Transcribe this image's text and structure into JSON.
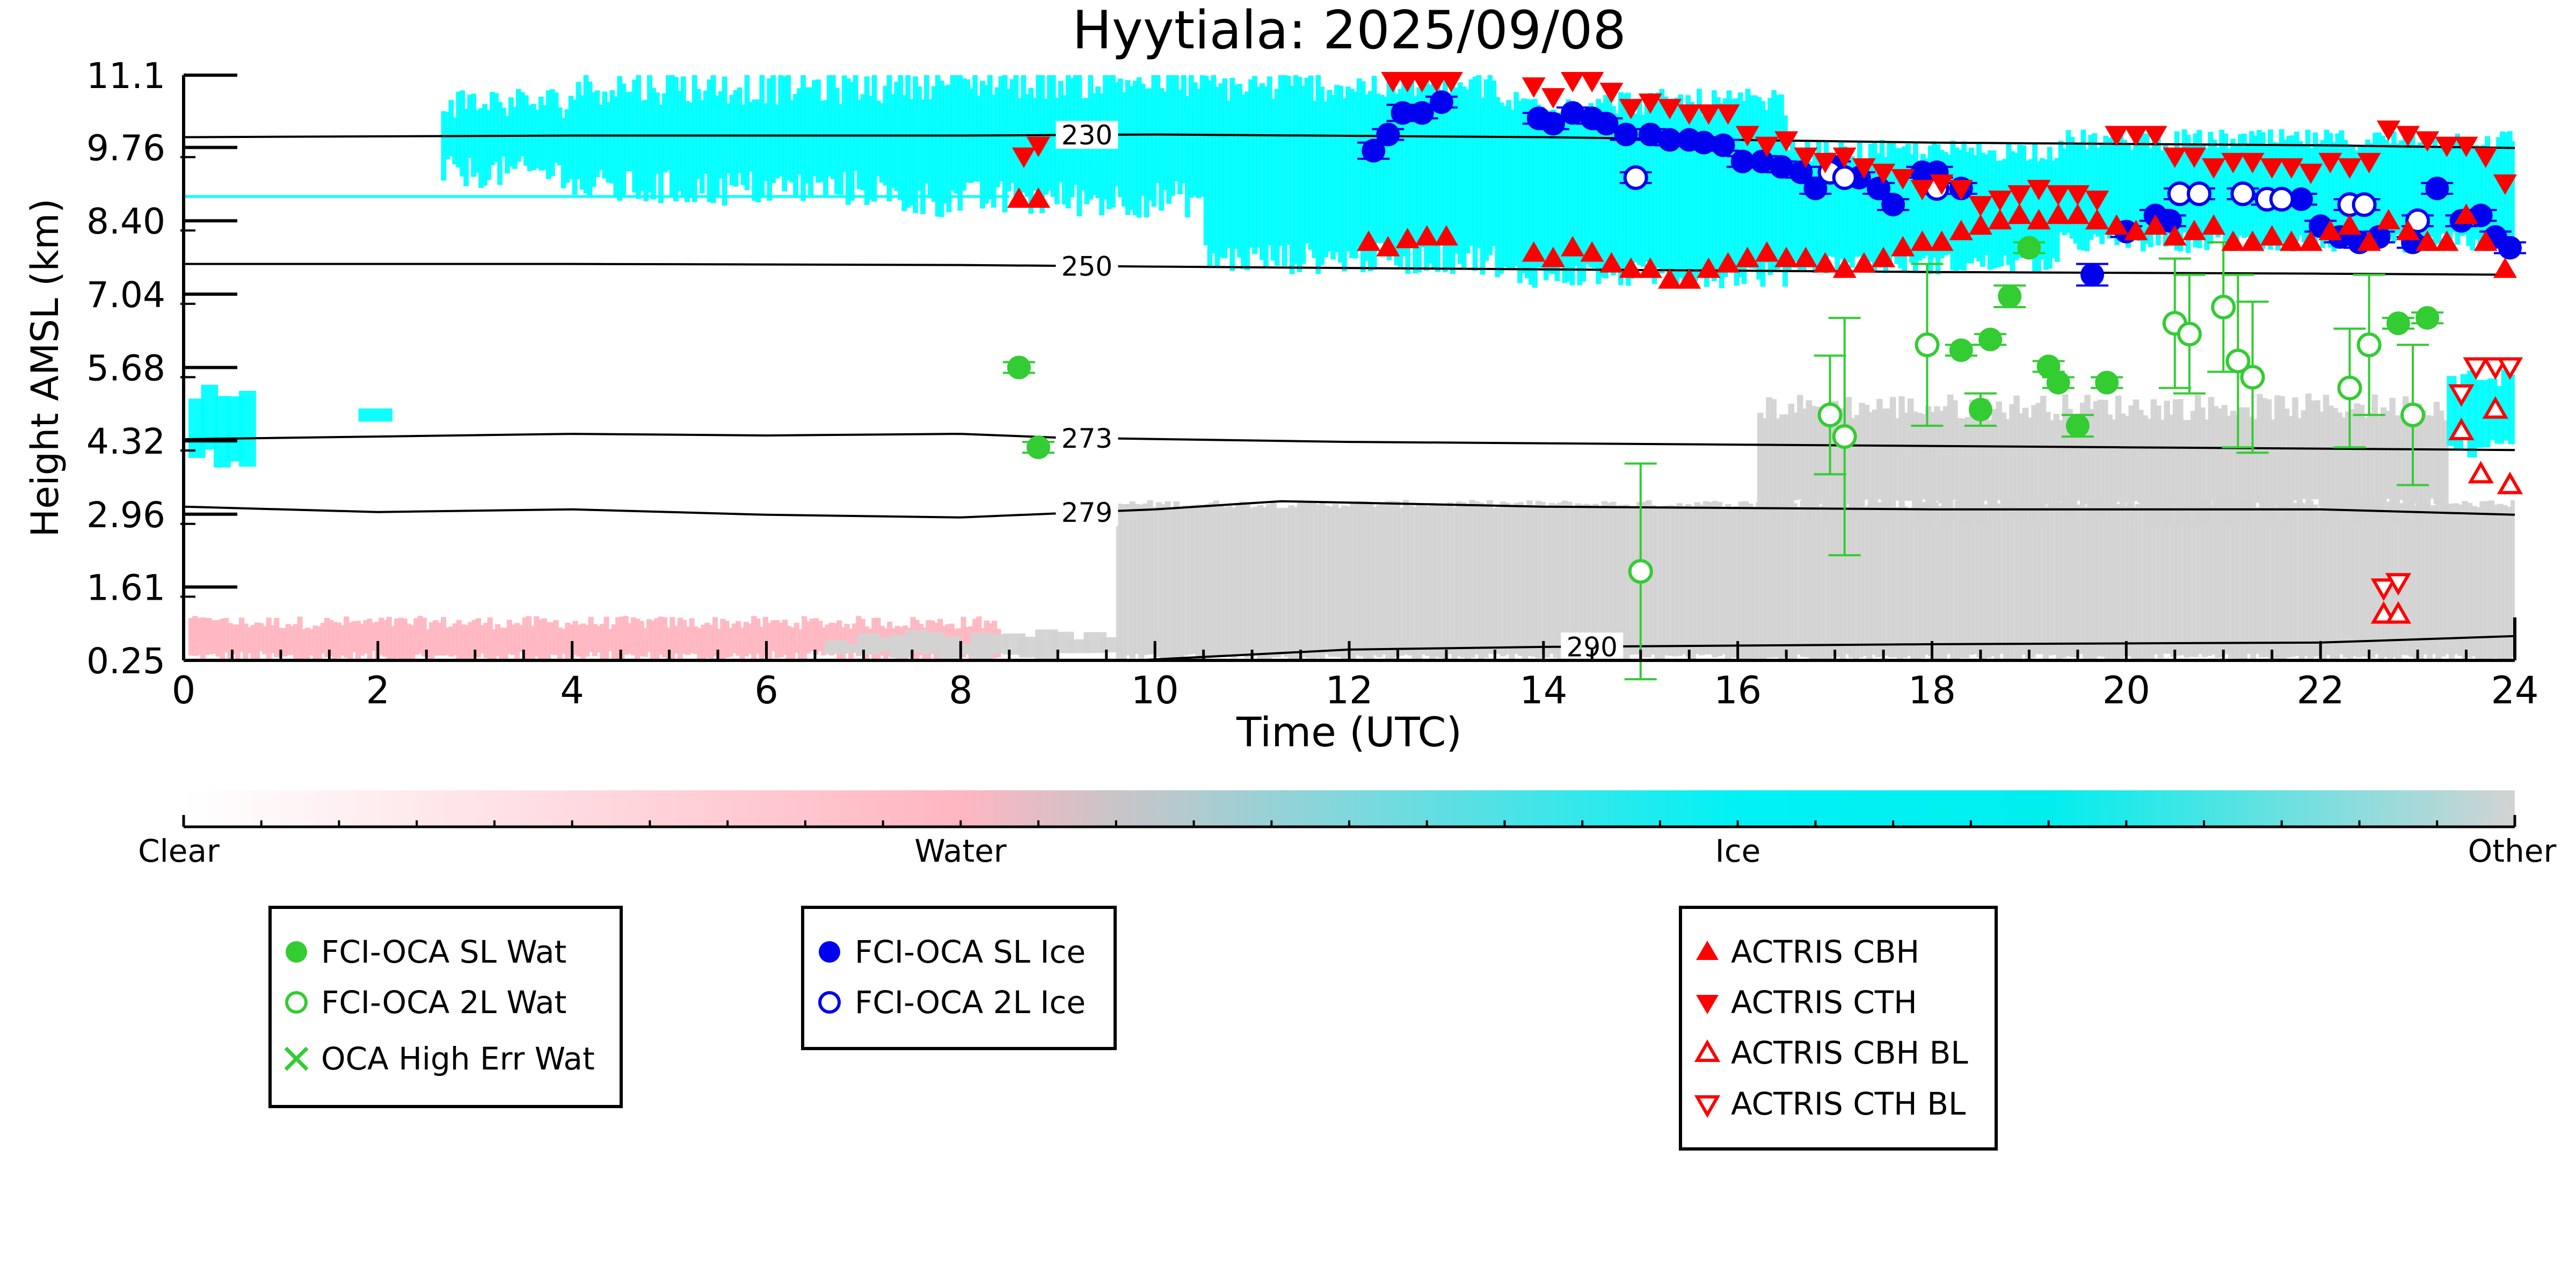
{
  "chart_data": {
    "type": "scatter",
    "title": "Hyytiala: 2025/09/08",
    "xlabel": "Time (UTC)",
    "ylabel": "Height AMSL (km)",
    "xlim": [
      0,
      24
    ],
    "ylim": [
      0.25,
      11.1
    ],
    "xticks": [
      0,
      2,
      4,
      6,
      8,
      10,
      12,
      14,
      16,
      18,
      20,
      22,
      24
    ],
    "yticks": [
      "0.25",
      "1.61",
      "2.96",
      "4.32",
      "5.68",
      "7.04",
      "8.40",
      "9.76",
      "11.1"
    ],
    "ytick_values": [
      0.25,
      1.61,
      2.96,
      4.32,
      5.68,
      7.04,
      8.4,
      9.76,
      11.1
    ],
    "background": "cloud classification image (clear / water / ice / other), shown as colour shading",
    "contours": [
      {
        "label": "230",
        "label_x": 9.3,
        "points": [
          [
            0,
            9.95
          ],
          [
            4,
            9.98
          ],
          [
            8,
            9.98
          ],
          [
            10,
            10.0
          ],
          [
            14,
            9.95
          ],
          [
            18,
            9.85
          ],
          [
            22,
            9.8
          ],
          [
            24,
            9.75
          ]
        ]
      },
      {
        "label": "250",
        "label_x": 9.3,
        "points": [
          [
            0,
            7.6
          ],
          [
            4,
            7.6
          ],
          [
            8,
            7.58
          ],
          [
            10,
            7.55
          ],
          [
            14,
            7.5
          ],
          [
            18,
            7.45
          ],
          [
            22,
            7.42
          ],
          [
            24,
            7.4
          ]
        ]
      },
      {
        "label": "273",
        "label_x": 9.3,
        "points": [
          [
            0,
            4.35
          ],
          [
            2,
            4.4
          ],
          [
            4,
            4.45
          ],
          [
            6,
            4.42
          ],
          [
            8,
            4.45
          ],
          [
            9,
            4.38
          ],
          [
            12,
            4.3
          ],
          [
            16,
            4.25
          ],
          [
            20,
            4.2
          ],
          [
            24,
            4.15
          ]
        ]
      },
      {
        "label": "279",
        "label_x": 9.3,
        "points": [
          [
            0,
            3.1
          ],
          [
            2,
            3.0
          ],
          [
            4,
            3.05
          ],
          [
            6,
            2.95
          ],
          [
            8,
            2.9
          ],
          [
            10,
            3.05
          ],
          [
            11.3,
            3.2
          ],
          [
            14,
            3.1
          ],
          [
            18,
            3.05
          ],
          [
            22,
            3.05
          ],
          [
            24,
            2.95
          ]
        ]
      },
      {
        "label": "290",
        "label_x": 14.5,
        "points": [
          [
            9.8,
            0.25
          ],
          [
            12,
            0.45
          ],
          [
            14,
            0.5
          ],
          [
            18,
            0.55
          ],
          [
            22,
            0.58
          ],
          [
            24,
            0.7
          ]
        ]
      }
    ],
    "series": [
      {
        "name": "FCI-OCA SL Wat",
        "marker": "filled-circle",
        "color": "#33cc33",
        "points": [
          [
            8.6,
            5.68,
            0.1
          ],
          [
            8.8,
            4.2,
            0.1
          ],
          [
            18.3,
            6.0,
            0.1
          ],
          [
            18.5,
            4.9,
            0.3
          ],
          [
            18.6,
            6.2,
            0.1
          ],
          [
            18.8,
            7.0,
            0.2
          ],
          [
            19.0,
            7.9,
            0.1
          ],
          [
            19.2,
            5.7,
            0.1
          ],
          [
            19.3,
            5.4,
            0.1
          ],
          [
            19.5,
            4.6,
            0.2
          ],
          [
            19.8,
            5.4,
            0.1
          ],
          [
            22.8,
            6.5,
            0.1
          ],
          [
            23.1,
            6.6,
            0.1
          ]
        ]
      },
      {
        "name": "FCI-OCA 2L Wat",
        "marker": "open-circle",
        "color": "#33cc33",
        "points": [
          [
            15.0,
            1.9,
            2.0
          ],
          [
            16.95,
            4.8,
            1.1
          ],
          [
            17.1,
            4.4,
            2.2
          ],
          [
            17.95,
            6.1,
            1.5
          ],
          [
            20.5,
            6.5,
            1.2
          ],
          [
            20.65,
            6.3,
            1.1
          ],
          [
            21.0,
            6.8,
            1.2
          ],
          [
            21.15,
            5.8,
            1.6
          ],
          [
            21.3,
            5.5,
            1.4
          ],
          [
            22.3,
            5.3,
            1.1
          ],
          [
            22.5,
            6.1,
            1.3
          ],
          [
            22.95,
            4.8,
            1.3
          ]
        ]
      },
      {
        "name": "OCA High Err Wat",
        "marker": "x",
        "color": "#33cc33",
        "points": []
      },
      {
        "name": "FCI-OCA SL Ice",
        "marker": "filled-circle",
        "color": "#0000ee",
        "points": [
          [
            12.25,
            9.7,
            0.15
          ],
          [
            12.4,
            10.0,
            0.1
          ],
          [
            12.55,
            10.4,
            0.15
          ],
          [
            12.75,
            10.4,
            0.1
          ],
          [
            12.95,
            10.6,
            0.1
          ],
          [
            13.95,
            10.3,
            0.1
          ],
          [
            14.1,
            10.2,
            0.1
          ],
          [
            14.3,
            10.4,
            0.1
          ],
          [
            14.5,
            10.3,
            0.1
          ],
          [
            14.65,
            10.2,
            0.1
          ],
          [
            14.85,
            10.0,
            0.1
          ],
          [
            15.1,
            10.0,
            0.1
          ],
          [
            15.3,
            9.9,
            0.1
          ],
          [
            15.5,
            9.9,
            0.1
          ],
          [
            15.65,
            9.85,
            0.1
          ],
          [
            15.85,
            9.8,
            0.1
          ],
          [
            16.05,
            9.5,
            0.1
          ],
          [
            16.25,
            9.5,
            0.1
          ],
          [
            16.45,
            9.4,
            0.1
          ],
          [
            16.65,
            9.3,
            0.1
          ],
          [
            16.8,
            9.0,
            0.1
          ],
          [
            17.0,
            9.4,
            0.1
          ],
          [
            17.25,
            9.2,
            0.1
          ],
          [
            17.45,
            9.0,
            0.1
          ],
          [
            17.6,
            8.7,
            0.1
          ],
          [
            17.9,
            9.3,
            0.1
          ],
          [
            18.05,
            9.3,
            0.1
          ],
          [
            18.3,
            9.0,
            0.1
          ],
          [
            19.65,
            7.4,
            0.2
          ],
          [
            20.0,
            8.2,
            0.1
          ],
          [
            20.3,
            8.5,
            0.1
          ],
          [
            20.45,
            8.4,
            0.1
          ],
          [
            21.8,
            8.8,
            0.1
          ],
          [
            22.0,
            8.3,
            0.1
          ],
          [
            22.2,
            8.1,
            0.1
          ],
          [
            22.4,
            8.0,
            0.1
          ],
          [
            22.6,
            8.1,
            0.1
          ],
          [
            22.95,
            8.0,
            0.1
          ],
          [
            23.2,
            9.0,
            0.1
          ],
          [
            23.45,
            8.4,
            0.1
          ],
          [
            23.65,
            8.5,
            0.1
          ],
          [
            23.8,
            8.1,
            0.1
          ],
          [
            23.95,
            7.9,
            0.1
          ]
        ]
      },
      {
        "name": "FCI-OCA 2L Ice",
        "marker": "open-circle",
        "color": "#0000ee",
        "points": [
          [
            14.95,
            9.2,
            0.1
          ],
          [
            16.95,
            9.3,
            0.1
          ],
          [
            17.1,
            9.2,
            0.1
          ],
          [
            18.05,
            9.0,
            0.1
          ],
          [
            20.55,
            8.9,
            0.1
          ],
          [
            20.75,
            8.9,
            0.1
          ],
          [
            21.2,
            8.9,
            0.1
          ],
          [
            21.45,
            8.8,
            0.1
          ],
          [
            21.6,
            8.8,
            0.1
          ],
          [
            22.3,
            8.7,
            0.1
          ],
          [
            22.45,
            8.7,
            0.1
          ],
          [
            23.0,
            8.4,
            0.1
          ]
        ]
      },
      {
        "name": "ACTRIS CBH",
        "marker": "triangle-up-filled",
        "color": "#ff0000",
        "points": [
          [
            8.6,
            8.8
          ],
          [
            8.8,
            8.8
          ],
          [
            12.2,
            8.0
          ],
          [
            12.4,
            7.9
          ],
          [
            12.6,
            8.05
          ],
          [
            12.8,
            8.1
          ],
          [
            13.0,
            8.1
          ],
          [
            13.9,
            7.8
          ],
          [
            14.1,
            7.7
          ],
          [
            14.3,
            7.9
          ],
          [
            14.5,
            7.8
          ],
          [
            14.7,
            7.6
          ],
          [
            14.9,
            7.5
          ],
          [
            15.1,
            7.5
          ],
          [
            15.3,
            7.3
          ],
          [
            15.5,
            7.3
          ],
          [
            15.7,
            7.5
          ],
          [
            15.9,
            7.6
          ],
          [
            16.1,
            7.7
          ],
          [
            16.3,
            7.8
          ],
          [
            16.5,
            7.7
          ],
          [
            16.7,
            7.7
          ],
          [
            16.9,
            7.6
          ],
          [
            17.1,
            7.5
          ],
          [
            17.3,
            7.6
          ],
          [
            17.5,
            7.7
          ],
          [
            17.7,
            7.9
          ],
          [
            17.9,
            8.0
          ],
          [
            18.1,
            8.0
          ],
          [
            18.3,
            8.2
          ],
          [
            18.5,
            8.3
          ],
          [
            18.7,
            8.4
          ],
          [
            18.9,
            8.5
          ],
          [
            19.1,
            8.4
          ],
          [
            19.3,
            8.5
          ],
          [
            19.5,
            8.5
          ],
          [
            19.7,
            8.4
          ],
          [
            19.9,
            8.3
          ],
          [
            20.1,
            8.2
          ],
          [
            20.3,
            8.3
          ],
          [
            20.5,
            8.1
          ],
          [
            20.7,
            8.2
          ],
          [
            20.9,
            8.3
          ],
          [
            21.1,
            8.0
          ],
          [
            21.3,
            8.0
          ],
          [
            21.5,
            8.1
          ],
          [
            21.7,
            8.0
          ],
          [
            21.9,
            8.0
          ],
          [
            22.1,
            8.2
          ],
          [
            22.3,
            8.3
          ],
          [
            22.5,
            8.0
          ],
          [
            22.7,
            8.4
          ],
          [
            22.9,
            8.2
          ],
          [
            23.1,
            8.0
          ],
          [
            23.3,
            8.0
          ],
          [
            23.5,
            8.5
          ],
          [
            23.7,
            8.0
          ],
          [
            23.9,
            7.5
          ]
        ]
      },
      {
        "name": "ACTRIS CTH",
        "marker": "triangle-down-filled",
        "color": "#ff0000",
        "points": [
          [
            8.65,
            9.6
          ],
          [
            8.8,
            9.8
          ],
          [
            12.45,
            11.0
          ],
          [
            12.6,
            11.0
          ],
          [
            12.75,
            11.0
          ],
          [
            12.9,
            11.0
          ],
          [
            13.05,
            11.0
          ],
          [
            13.9,
            10.9
          ],
          [
            14.1,
            10.7
          ],
          [
            14.3,
            11.0
          ],
          [
            14.5,
            11.0
          ],
          [
            14.7,
            10.8
          ],
          [
            14.9,
            10.5
          ],
          [
            15.1,
            10.6
          ],
          [
            15.3,
            10.5
          ],
          [
            15.5,
            10.4
          ],
          [
            15.7,
            10.4
          ],
          [
            15.9,
            10.4
          ],
          [
            16.1,
            10.0
          ],
          [
            16.3,
            9.8
          ],
          [
            16.5,
            9.9
          ],
          [
            16.7,
            9.6
          ],
          [
            16.9,
            9.5
          ],
          [
            17.1,
            9.6
          ],
          [
            17.3,
            9.4
          ],
          [
            17.5,
            9.3
          ],
          [
            17.7,
            9.2
          ],
          [
            17.9,
            9.0
          ],
          [
            18.1,
            9.1
          ],
          [
            18.3,
            9.0
          ],
          [
            18.5,
            8.7
          ],
          [
            18.7,
            8.8
          ],
          [
            18.9,
            8.9
          ],
          [
            19.1,
            9.0
          ],
          [
            19.3,
            8.9
          ],
          [
            19.5,
            8.9
          ],
          [
            19.7,
            8.8
          ],
          [
            19.9,
            10.0
          ],
          [
            20.1,
            10.0
          ],
          [
            20.3,
            10.0
          ],
          [
            20.5,
            9.6
          ],
          [
            20.7,
            9.6
          ],
          [
            20.9,
            9.4
          ],
          [
            21.1,
            9.5
          ],
          [
            21.3,
            9.5
          ],
          [
            21.5,
            9.4
          ],
          [
            21.7,
            9.4
          ],
          [
            21.9,
            9.3
          ],
          [
            22.1,
            9.5
          ],
          [
            22.3,
            9.4
          ],
          [
            22.5,
            9.5
          ],
          [
            22.7,
            10.1
          ],
          [
            22.9,
            10.0
          ],
          [
            23.1,
            9.9
          ],
          [
            23.3,
            9.8
          ],
          [
            23.5,
            9.8
          ],
          [
            23.7,
            9.6
          ],
          [
            23.9,
            9.1
          ]
        ]
      },
      {
        "name": "ACTRIS CBH BL",
        "marker": "triangle-up-open",
        "color": "#ff0000",
        "points": [
          [
            22.65,
            1.1
          ],
          [
            22.8,
            1.1
          ],
          [
            23.45,
            4.5
          ],
          [
            23.65,
            3.7
          ],
          [
            23.8,
            4.9
          ],
          [
            23.95,
            3.5
          ]
        ]
      },
      {
        "name": "ACTRIS CTH BL",
        "marker": "triangle-down-open",
        "color": "#ff0000",
        "points": [
          [
            22.65,
            1.6
          ],
          [
            22.8,
            1.7
          ],
          [
            23.45,
            5.2
          ],
          [
            23.6,
            5.7
          ],
          [
            23.8,
            5.7
          ],
          [
            23.95,
            5.7
          ]
        ]
      }
    ],
    "colorbar": {
      "labels": [
        "Clear",
        "Water",
        "Ice",
        "Other"
      ],
      "colors": [
        "#ffffff",
        "#ffb6c1",
        "#00ffff",
        "#d3d3d3"
      ]
    },
    "legends": [
      {
        "entries": [
          "FCI-OCA SL Wat",
          "FCI-OCA 2L Wat",
          "OCA High Err Wat"
        ]
      },
      {
        "entries": [
          "FCI-OCA SL Ice",
          "FCI-OCA 2L Ice"
        ]
      },
      {
        "entries": [
          "ACTRIS CBH",
          "ACTRIS CTH",
          "ACTRIS CBH BL",
          "ACTRIS CTH BL"
        ]
      }
    ],
    "grid": false
  }
}
